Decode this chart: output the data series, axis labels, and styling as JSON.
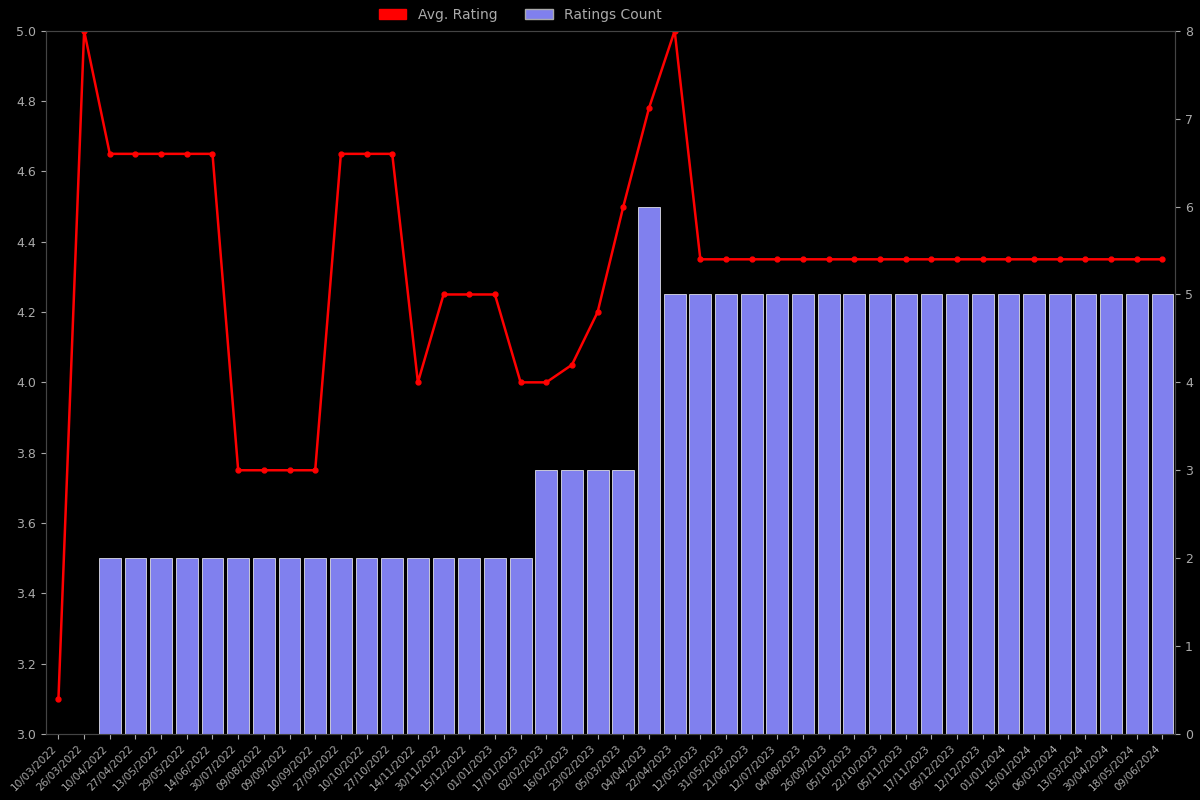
{
  "background_color": "#000000",
  "bar_color": "#8080ee",
  "bar_edge_color": "#ffffff",
  "line_color": "#ff0000",
  "left_ylim": [
    3.0,
    5.0
  ],
  "right_ylim": [
    0,
    8
  ],
  "left_yticks": [
    3.0,
    3.2,
    3.4,
    3.6,
    3.8,
    4.0,
    4.2,
    4.4,
    4.6,
    4.8,
    5.0
  ],
  "right_yticks": [
    0,
    1,
    2,
    3,
    4,
    5,
    6,
    7,
    8
  ],
  "dates": [
    "10/03/2022",
    "26/03/2022",
    "10/04/2022",
    "27/04/2022",
    "13/05/2022",
    "29/05/2022",
    "14/06/2022",
    "30/07/2022",
    "09/08/2022",
    "09/09/2022",
    "10/09/2022",
    "27/09/2022",
    "10/10/2022",
    "27/10/2022",
    "14/11/2022",
    "30/11/2022",
    "15/12/2022",
    "01/01/2023",
    "17/01/2023",
    "02/02/2023",
    "16/02/2023",
    "23/02/2023",
    "05/03/2023",
    "04/04/2023",
    "22/04/2023",
    "12/05/2023",
    "31/05/2023",
    "21/06/2023",
    "12/07/2023",
    "04/08/2023",
    "26/09/2023",
    "05/10/2023",
    "22/10/2023",
    "05/11/2023",
    "17/11/2023",
    "05/12/2023",
    "12/12/2023",
    "01/01/2024",
    "15/01/2024",
    "06/03/2024",
    "13/03/2024",
    "30/04/2024",
    "18/05/2024",
    "09/06/2024"
  ],
  "bar_counts": [
    0,
    0,
    2,
    2,
    2,
    2,
    2,
    2,
    2,
    2,
    2,
    2,
    2,
    2,
    2,
    2,
    2,
    2,
    2,
    3,
    3,
    3,
    3,
    6,
    5,
    5,
    5,
    5,
    5,
    5,
    5,
    5,
    5,
    5,
    5,
    5,
    5,
    5,
    5,
    5,
    5,
    5,
    5,
    5
  ],
  "line_values": [
    3.1,
    5.0,
    4.65,
    4.65,
    4.65,
    4.65,
    4.65,
    3.75,
    3.75,
    3.75,
    3.75,
    4.65,
    4.65,
    4.65,
    4.0,
    4.25,
    4.25,
    4.25,
    4.0,
    4.0,
    4.05,
    4.2,
    4.5,
    4.78,
    5.0,
    4.35,
    4.35,
    4.35,
    4.35,
    4.35,
    4.35,
    4.35,
    4.35,
    4.35,
    4.35,
    4.35,
    4.35,
    4.35,
    4.35,
    4.35,
    4.35,
    4.35,
    4.35,
    4.35
  ],
  "tick_label_color": "#aaaaaa",
  "tick_label_fontsize": 9,
  "xtick_fontsize": 7.5,
  "legend_label_avg": "Avg. Rating",
  "legend_label_count": "Ratings Count",
  "figsize": [
    12,
    8
  ]
}
